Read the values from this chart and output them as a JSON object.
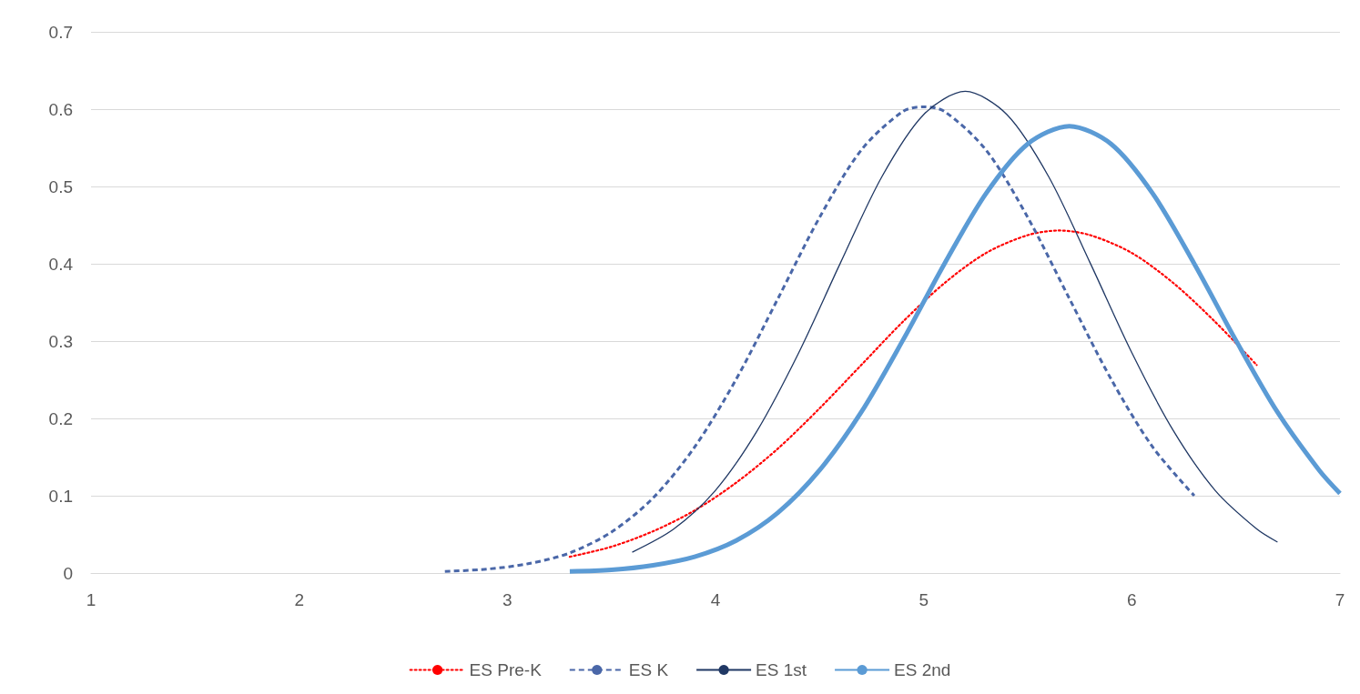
{
  "chart_data": {
    "type": "line",
    "xlim": [
      1,
      7
    ],
    "xticks": [
      1,
      2,
      3,
      4,
      5,
      6,
      7
    ],
    "ylim": [
      0,
      0.7
    ],
    "yticks": [
      0,
      0.1,
      0.2,
      0.3,
      0.4,
      0.5,
      0.6,
      0.7
    ],
    "grid": "y",
    "legend": "bottom",
    "marker": "none",
    "series": [
      {
        "name": "ES Pre-K",
        "color": "#ff0000",
        "line_style": "dotted",
        "x": [
          3.3,
          3.5,
          3.7,
          3.9,
          4.1,
          4.3,
          4.5,
          4.7,
          4.9,
          5.1,
          5.3,
          5.5,
          5.65,
          5.8,
          6.0,
          6.2,
          6.4,
          6.6
        ],
        "values": [
          0.021,
          0.034,
          0.054,
          0.081,
          0.117,
          0.161,
          0.213,
          0.269,
          0.325,
          0.375,
          0.414,
          0.437,
          0.443,
          0.437,
          0.414,
          0.375,
          0.325,
          0.269
        ]
      },
      {
        "name": "ES K",
        "color": "#4a67a8",
        "line_style": "dashed",
        "x": [
          2.7,
          2.9,
          3.1,
          3.3,
          3.5,
          3.7,
          3.9,
          4.1,
          4.3,
          4.5,
          4.7,
          4.9,
          5.0,
          5.1,
          5.3,
          5.5,
          5.7,
          5.9,
          6.1,
          6.3
        ],
        "values": [
          0.002,
          0.005,
          0.012,
          0.026,
          0.053,
          0.097,
          0.163,
          0.251,
          0.355,
          0.46,
          0.547,
          0.597,
          0.603,
          0.597,
          0.547,
          0.46,
          0.355,
          0.251,
          0.163,
          0.1
        ]
      },
      {
        "name": "ES 1st",
        "color": "#203864",
        "line_style": "solid",
        "x": [
          3.6,
          3.8,
          4.0,
          4.2,
          4.4,
          4.6,
          4.8,
          5.0,
          5.2,
          5.4,
          5.6,
          5.8,
          6.0,
          6.2,
          6.4,
          6.6,
          6.7
        ],
        "values": [
          0.027,
          0.057,
          0.107,
          0.184,
          0.285,
          0.401,
          0.513,
          0.593,
          0.623,
          0.593,
          0.513,
          0.401,
          0.285,
          0.184,
          0.107,
          0.057,
          0.04
        ]
      },
      {
        "name": "ES 2nd",
        "color": "#5b9bd5",
        "line_style": "solid",
        "x": [
          3.3,
          3.5,
          3.7,
          3.9,
          4.1,
          4.3,
          4.5,
          4.7,
          4.9,
          5.1,
          5.3,
          5.5,
          5.7,
          5.9,
          6.1,
          6.3,
          6.5,
          6.7,
          6.9,
          7.0
        ],
        "values": [
          0.002,
          0.004,
          0.01,
          0.021,
          0.042,
          0.078,
          0.133,
          0.208,
          0.301,
          0.4,
          0.491,
          0.555,
          0.578,
          0.555,
          0.491,
          0.4,
          0.301,
          0.208,
          0.133,
          0.103
        ]
      }
    ]
  }
}
